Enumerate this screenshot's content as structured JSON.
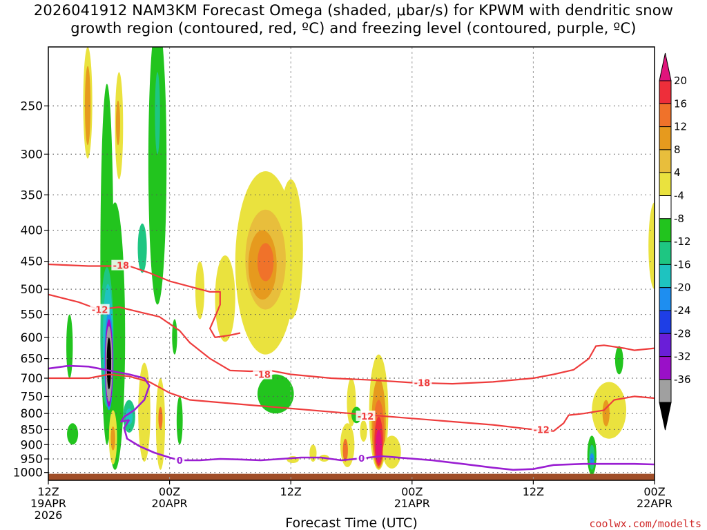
{
  "title_line1": "2026041912 NAM3KM Forecast Omega (shaded, μbar/s) for KPWM with dendritic snow",
  "title_line2": "growth region (contoured, red, ºC) and freezing level (contoured, purple, ºC)",
  "credit": "coolwx.com/modelts",
  "chart_data": {
    "type": "heatmap",
    "xlabel": "Forecast Time (UTC)",
    "x_range_hours": [
      0,
      60
    ],
    "pressure_levels": [
      250,
      300,
      350,
      400,
      450,
      500,
      550,
      600,
      650,
      700,
      750,
      800,
      850,
      900,
      950,
      1000
    ],
    "pressure_range": [
      200,
      1030
    ],
    "time_ticks": [
      {
        "hour": 0,
        "line1": "12Z",
        "line2": "19APR",
        "line3": "2026"
      },
      {
        "hour": 12,
        "line1": "00Z",
        "line2": "20APR",
        "line3": ""
      },
      {
        "hour": 24,
        "line1": "12Z",
        "line2": "",
        "line3": ""
      },
      {
        "hour": 36,
        "line1": "00Z",
        "line2": "21APR",
        "line3": ""
      },
      {
        "hour": 48,
        "line1": "12Z",
        "line2": "",
        "line3": ""
      },
      {
        "hour": 60,
        "line1": "00Z",
        "line2": "22APR",
        "line3": ""
      }
    ],
    "colorbar": {
      "labels": [
        "20",
        "16",
        "12",
        "8",
        "4",
        "-4",
        "-8",
        "-12",
        "-16",
        "-20",
        "-24",
        "-28",
        "-32",
        "-36"
      ],
      "top_color": "#e0147c",
      "bottom_color": "#000000",
      "colors": [
        "#ee2e3a",
        "#f0722a",
        "#e69a1e",
        "#e8be3c",
        "#eae23e",
        "#ffffff",
        "#22c41e",
        "#1ec682",
        "#1ec3c0",
        "#1e8ef0",
        "#1e3ee6",
        "#6a1ed8",
        "#9a10c8",
        "#a0a0a0"
      ]
    },
    "contour_labels": {
      "dgz_labels": [
        "-18",
        "-12",
        "-18",
        "-18",
        "-12",
        "-12"
      ],
      "freezing_labels": [
        "0",
        "0"
      ]
    },
    "colors": {
      "dgz_line": "#ee3c3c",
      "freezing_line": "#9a1ed2",
      "ground": "#a04e28"
    },
    "omega_blobs": [
      {
        "t": 3.9,
        "p_top": 200,
        "p_bot": 305,
        "hw": 0.45,
        "cat": "eae23e"
      },
      {
        "t": 3.9,
        "p_top": 215,
        "p_bot": 290,
        "hw": 0.28,
        "cat": "e69a1e"
      },
      {
        "t": 7.0,
        "p_top": 220,
        "p_bot": 330,
        "hw": 0.4,
        "cat": "eae23e"
      },
      {
        "t": 6.9,
        "p_top": 245,
        "p_bot": 290,
        "hw": 0.18,
        "cat": "e69a1e"
      },
      {
        "t": 10.8,
        "p_top": 180,
        "p_bot": 530,
        "hw": 0.9,
        "cat": "22c41e"
      },
      {
        "t": 10.8,
        "p_top": 220,
        "p_bot": 300,
        "hw": 0.25,
        "cat": "1ec682"
      },
      {
        "t": 6.6,
        "p_top": 360,
        "p_bot": 990,
        "hw": 1.0,
        "cat": "22c41e"
      },
      {
        "t": 5.8,
        "p_top": 230,
        "p_bot": 900,
        "hw": 0.65,
        "cat": "22c41e"
      },
      {
        "t": 9.3,
        "p_top": 390,
        "p_bot": 470,
        "hw": 0.45,
        "cat": "1ec682"
      },
      {
        "t": 5.8,
        "p_top": 460,
        "p_bot": 780,
        "hw": 0.65,
        "cat": "1ec682"
      },
      {
        "t": 5.9,
        "p_top": 490,
        "p_bot": 750,
        "hw": 0.5,
        "cat": "1ec3c0"
      },
      {
        "t": 6.0,
        "p_top": 545,
        "p_bot": 790,
        "hw": 0.45,
        "cat": "1e8ef0"
      },
      {
        "t": 6.0,
        "p_top": 560,
        "p_bot": 780,
        "hw": 0.4,
        "cat": "9a10c8"
      },
      {
        "t": 6.0,
        "p_top": 575,
        "p_bot": 765,
        "hw": 0.33,
        "cat": "a0a0a0"
      },
      {
        "t": 6.0,
        "p_top": 600,
        "p_bot": 730,
        "hw": 0.22,
        "cat": "000000"
      },
      {
        "t": 2.1,
        "p_top": 550,
        "p_bot": 700,
        "hw": 0.32,
        "cat": "22c41e"
      },
      {
        "t": 2.4,
        "p_top": 830,
        "p_bot": 900,
        "hw": 0.55,
        "cat": "22c41e"
      },
      {
        "t": 8.0,
        "p_top": 760,
        "p_bot": 860,
        "hw": 0.6,
        "cat": "1ec682"
      },
      {
        "t": 8.0,
        "p_top": 785,
        "p_bot": 835,
        "hw": 0.35,
        "cat": "1ec3c0"
      },
      {
        "t": 6.4,
        "p_top": 790,
        "p_bot": 970,
        "hw": 0.4,
        "cat": "eae23e"
      },
      {
        "t": 6.4,
        "p_top": 840,
        "p_bot": 920,
        "hw": 0.22,
        "cat": "e69a1e"
      },
      {
        "t": 9.5,
        "p_top": 660,
        "p_bot": 960,
        "hw": 0.6,
        "cat": "eae23e"
      },
      {
        "t": 11.1,
        "p_top": 700,
        "p_bot": 990,
        "hw": 0.45,
        "cat": "eae23e"
      },
      {
        "t": 11.1,
        "p_top": 780,
        "p_bot": 850,
        "hw": 0.2,
        "cat": "f0722a"
      },
      {
        "t": 13.0,
        "p_top": 750,
        "p_bot": 900,
        "hw": 0.3,
        "cat": "22c41e"
      },
      {
        "t": 12.5,
        "p_top": 560,
        "p_bot": 640,
        "hw": 0.25,
        "cat": "22c41e"
      },
      {
        "t": 15.0,
        "p_top": 450,
        "p_bot": 560,
        "hw": 0.45,
        "cat": "eae23e"
      },
      {
        "t": 17.5,
        "p_top": 440,
        "p_bot": 610,
        "hw": 1.0,
        "cat": "eae23e"
      },
      {
        "t": 21.5,
        "p_top": 320,
        "p_bot": 640,
        "hw": 3.0,
        "cat": "eae23e"
      },
      {
        "t": 24.0,
        "p_top": 330,
        "p_bot": 560,
        "hw": 1.2,
        "cat": "eae23e"
      },
      {
        "t": 21.5,
        "p_top": 370,
        "p_bot": 540,
        "hw": 2.0,
        "cat": "e8be3c"
      },
      {
        "t": 21.2,
        "p_top": 400,
        "p_bot": 520,
        "hw": 1.4,
        "cat": "e69a1e"
      },
      {
        "t": 21.5,
        "p_top": 420,
        "p_bot": 485,
        "hw": 0.8,
        "cat": "f0722a"
      },
      {
        "t": 22.5,
        "p_top": 690,
        "p_bot": 800,
        "hw": 1.8,
        "cat": "22c41e"
      },
      {
        "t": 30.0,
        "p_top": 700,
        "p_bot": 840,
        "hw": 0.45,
        "cat": "eae23e"
      },
      {
        "t": 29.6,
        "p_top": 830,
        "p_bot": 980,
        "hw": 0.7,
        "cat": "eae23e"
      },
      {
        "t": 29.4,
        "p_top": 880,
        "p_bot": 960,
        "hw": 0.25,
        "cat": "f0722a"
      },
      {
        "t": 31.2,
        "p_top": 820,
        "p_bot": 890,
        "hw": 0.35,
        "cat": "eae23e"
      },
      {
        "t": 30.5,
        "p_top": 780,
        "p_bot": 830,
        "hw": 0.5,
        "cat": "22c41e"
      },
      {
        "t": 32.7,
        "p_top": 640,
        "p_bot": 990,
        "hw": 0.95,
        "cat": "eae23e"
      },
      {
        "t": 32.7,
        "p_top": 700,
        "p_bot": 985,
        "hw": 0.7,
        "cat": "e69a1e"
      },
      {
        "t": 32.7,
        "p_top": 760,
        "p_bot": 980,
        "hw": 0.55,
        "cat": "f0722a"
      },
      {
        "t": 32.7,
        "p_top": 810,
        "p_bot": 975,
        "hw": 0.42,
        "cat": "ee2e3a"
      },
      {
        "t": 32.7,
        "p_top": 850,
        "p_bot": 965,
        "hw": 0.3,
        "cat": "e0147c"
      },
      {
        "t": 34.0,
        "p_top": 870,
        "p_bot": 985,
        "hw": 0.9,
        "cat": "eae23e"
      },
      {
        "t": 26.2,
        "p_top": 900,
        "p_bot": 960,
        "hw": 0.35,
        "cat": "eae23e"
      },
      {
        "t": 24.2,
        "p_top": 940,
        "p_bot": 965,
        "hw": 0.6,
        "cat": "eae23e"
      },
      {
        "t": 27.3,
        "p_top": 935,
        "p_bot": 960,
        "hw": 0.5,
        "cat": "eae23e"
      },
      {
        "t": 55.5,
        "p_top": 710,
        "p_bot": 880,
        "hw": 1.7,
        "cat": "eae23e"
      },
      {
        "t": 55.2,
        "p_top": 760,
        "p_bot": 840,
        "hw": 0.35,
        "cat": "e69a1e"
      },
      {
        "t": 53.8,
        "p_top": 870,
        "p_bot": 1010,
        "hw": 0.45,
        "cat": "22c41e"
      },
      {
        "t": 53.8,
        "p_top": 900,
        "p_bot": 990,
        "hw": 0.28,
        "cat": "1ec682"
      },
      {
        "t": 53.8,
        "p_top": 930,
        "p_bot": 970,
        "hw": 0.13,
        "cat": "1e8ef0"
      },
      {
        "t": 56.5,
        "p_top": 620,
        "p_bot": 690,
        "hw": 0.4,
        "cat": "22c41e"
      },
      {
        "t": 60.0,
        "p_top": 360,
        "p_bot": 500,
        "hw": 0.6,
        "cat": "eae23e"
      }
    ],
    "dgz_contours": [
      {
        "name": "minus18-upper",
        "points": [
          [
            0,
            455
          ],
          [
            4,
            458
          ],
          [
            8,
            458
          ],
          [
            10,
            470
          ],
          [
            12,
            485
          ],
          [
            14,
            495
          ],
          [
            16,
            505
          ],
          [
            17,
            505
          ],
          [
            17,
            530
          ],
          [
            16.5,
            555
          ],
          [
            16,
            580
          ],
          [
            16.5,
            600
          ],
          [
            18,
            595
          ],
          [
            19,
            590
          ]
        ]
      },
      {
        "name": "minus12-upper",
        "points": [
          [
            0,
            510
          ],
          [
            3,
            525
          ],
          [
            5,
            540
          ],
          [
            7,
            535
          ],
          [
            9,
            545
          ],
          [
            11,
            555
          ],
          [
            13,
            585
          ],
          [
            14,
            612
          ],
          [
            16,
            650
          ],
          [
            18,
            680
          ],
          [
            20,
            682
          ],
          [
            22,
            680
          ],
          [
            24,
            690
          ],
          [
            28,
            700
          ],
          [
            32,
            705
          ],
          [
            36,
            712
          ],
          [
            40,
            715
          ],
          [
            44,
            710
          ],
          [
            48,
            700
          ],
          [
            50,
            690
          ],
          [
            52,
            678
          ],
          [
            53.5,
            650
          ],
          [
            54.2,
            620
          ],
          [
            55,
            618
          ],
          [
            57,
            625
          ],
          [
            58,
            630
          ],
          [
            60,
            625
          ]
        ]
      },
      {
        "name": "minus18-lower",
        "points": [
          [
            0,
            700
          ],
          [
            4,
            700
          ],
          [
            6,
            690
          ],
          [
            8,
            695
          ],
          [
            10,
            710
          ],
          [
            12,
            740
          ],
          [
            14,
            760
          ],
          [
            16,
            765
          ],
          [
            20,
            775
          ],
          [
            24,
            785
          ],
          [
            28,
            795
          ],
          [
            32,
            805
          ],
          [
            36,
            815
          ],
          [
            40,
            825
          ],
          [
            44,
            835
          ],
          [
            48,
            850
          ],
          [
            50,
            855
          ],
          [
            51,
            830
          ],
          [
            51.5,
            805
          ],
          [
            53,
            800
          ],
          [
            55,
            790
          ],
          [
            56,
            760
          ],
          [
            58,
            750
          ],
          [
            60,
            755
          ]
        ]
      }
    ],
    "freezing_contour": {
      "points": [
        [
          8,
          820
        ],
        [
          7.5,
          845
        ],
        [
          7.8,
          880
        ],
        [
          9,
          905
        ],
        [
          10.5,
          928
        ],
        [
          12,
          945
        ],
        [
          13,
          955
        ],
        [
          15,
          955
        ],
        [
          17,
          950
        ],
        [
          19,
          952
        ],
        [
          21,
          955
        ],
        [
          23,
          950
        ],
        [
          25,
          945
        ],
        [
          27,
          945
        ],
        [
          29,
          955
        ],
        [
          31,
          948
        ],
        [
          33,
          940
        ],
        [
          35,
          946
        ],
        [
          38,
          955
        ],
        [
          41,
          968
        ],
        [
          44,
          982
        ],
        [
          46,
          990
        ],
        [
          48,
          987
        ],
        [
          50,
          972
        ],
        [
          53,
          968
        ],
        [
          56,
          968
        ],
        [
          58,
          968
        ],
        [
          60,
          970
        ]
      ]
    },
    "freezing_contour_extra": {
      "points": [
        [
          0,
          675
        ],
        [
          2,
          668
        ],
        [
          4,
          670
        ],
        [
          6,
          680
        ],
        [
          8,
          690
        ],
        [
          9.5,
          700
        ],
        [
          10,
          720
        ],
        [
          9.5,
          760
        ],
        [
          8.5,
          790
        ],
        [
          7.5,
          810
        ],
        [
          7.2,
          825
        ],
        [
          8,
          820
        ]
      ]
    }
  }
}
